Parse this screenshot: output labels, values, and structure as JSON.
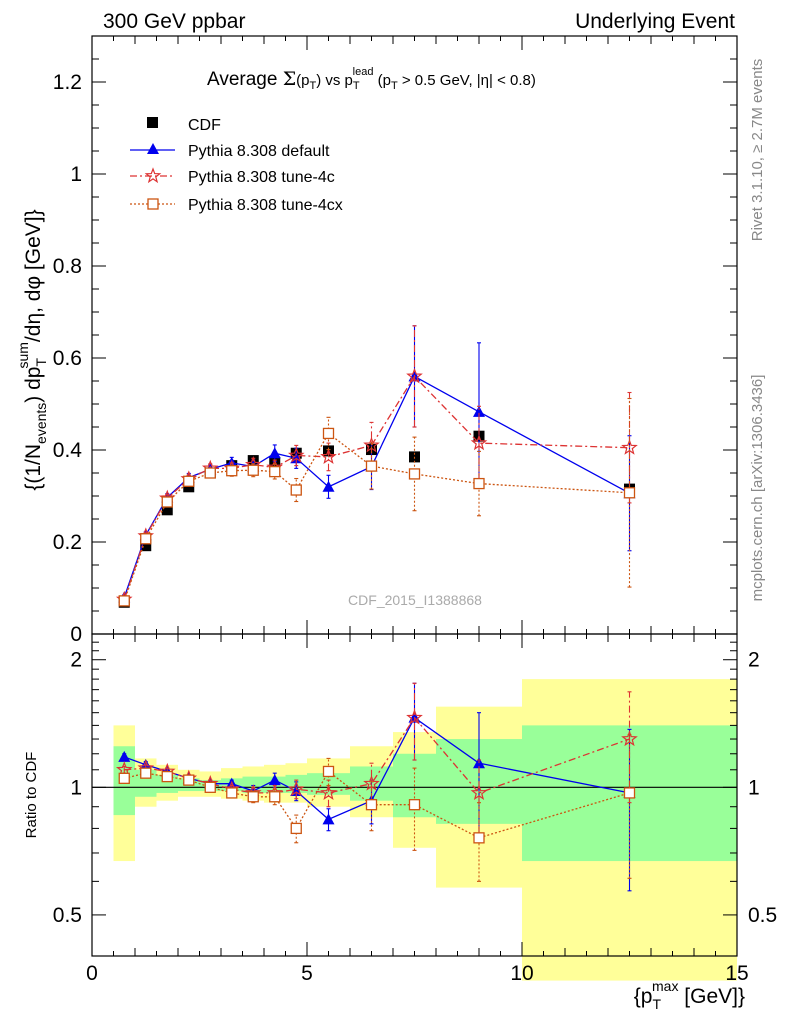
{
  "header": {
    "left": "300 GeV ppbar",
    "right": "Underlying Event"
  },
  "side_labels": {
    "rivet": "Rivet 3.1.10, ≥ 2.7M events",
    "mcplots": "mcplots.cern.ch [arXiv:1306.3436]"
  },
  "colors": {
    "cdf": "#000000",
    "default": "#0000ee",
    "tune4c": "#dd3333",
    "tune4cx": "#cc5511",
    "band_outer": "#ffff99",
    "band_inner": "#99ff99"
  },
  "chart_data": [
    {
      "type": "scatter",
      "panel": "main",
      "title_parts": {
        "prefix": "Average ",
        "sigma": "Σ",
        "pt": "(p",
        "pt_sub": "T",
        "vs": ") vs p",
        "lead_sub": "T",
        "lead_sup": "lead",
        "cuts1": " (p",
        "cuts_sub": "T",
        "cuts2": " > 0.5 GeV, |η| < 0.8)"
      },
      "ylabel_parts": {
        "a": "{(1/N",
        "a_sub": "events",
        "b": ") dp",
        "b_sub": "T",
        "b_sup": "sum",
        "c": "/dη, dφ [GeV]}"
      },
      "watermark": "CDF_2015_I1388868",
      "xlim": [
        0,
        15
      ],
      "ylim": [
        0,
        1.3
      ],
      "yticks": [
        {
          "v": 0,
          "label": "0"
        },
        {
          "v": 0.2,
          "label": "0.2"
        },
        {
          "v": 0.4,
          "label": "0.4"
        },
        {
          "v": 0.6,
          "label": "0.6"
        },
        {
          "v": 0.8,
          "label": "0.8"
        },
        {
          "v": 1.0,
          "label": "1"
        },
        {
          "v": 1.2,
          "label": "1.2"
        }
      ],
      "legend_position": "top-left",
      "series": [
        {
          "name": "CDF",
          "key": "cdf",
          "x": [
            0.75,
            1.25,
            1.75,
            2.25,
            2.75,
            3.25,
            3.75,
            4.25,
            4.75,
            5.5,
            6.5,
            7.5,
            9.0,
            12.5
          ],
          "y": [
            0.069,
            0.192,
            0.27,
            0.32,
            0.35,
            0.366,
            0.377,
            0.373,
            0.393,
            0.398,
            0.401,
            0.385,
            0.43,
            0.315
          ]
        },
        {
          "name": "Pythia 8.308 default",
          "key": "default",
          "x": [
            0.75,
            1.25,
            1.75,
            2.25,
            2.75,
            3.25,
            3.75,
            4.25,
            4.75,
            5.5,
            6.5,
            7.5,
            9.0,
            12.5
          ],
          "y": [
            0.08,
            0.215,
            0.297,
            0.34,
            0.358,
            0.372,
            0.364,
            0.393,
            0.382,
            0.32,
            0.364,
            0.56,
            0.483,
            0.306
          ],
          "err": [
            0.005,
            0.007,
            0.008,
            0.009,
            0.01,
            0.012,
            0.014,
            0.018,
            0.022,
            0.025,
            0.05,
            0.11,
            0.15,
            0.125
          ]
        },
        {
          "name": "Pythia 8.308 tune-4c",
          "key": "tune4c",
          "x": [
            0.75,
            1.25,
            1.75,
            2.25,
            2.75,
            3.25,
            3.75,
            4.25,
            4.75,
            5.5,
            6.5,
            7.5,
            9.0,
            12.5
          ],
          "y": [
            0.075,
            0.213,
            0.295,
            0.337,
            0.36,
            0.36,
            0.368,
            0.362,
            0.388,
            0.385,
            0.41,
            0.56,
            0.415,
            0.405
          ],
          "err": [
            0.004,
            0.007,
            0.008,
            0.009,
            0.01,
            0.012,
            0.014,
            0.016,
            0.022,
            0.03,
            0.05,
            0.11,
            0.08,
            0.12
          ]
        },
        {
          "name": "Pythia 8.308 tune-4cx",
          "key": "tune4cx",
          "x": [
            0.75,
            1.25,
            1.75,
            2.25,
            2.75,
            3.25,
            3.75,
            4.25,
            4.75,
            5.5,
            6.5,
            7.5,
            9.0,
            12.5
          ],
          "y": [
            0.072,
            0.207,
            0.287,
            0.332,
            0.35,
            0.355,
            0.356,
            0.353,
            0.313,
            0.436,
            0.365,
            0.348,
            0.327,
            0.307
          ],
          "err": [
            0.004,
            0.007,
            0.008,
            0.009,
            0.01,
            0.012,
            0.014,
            0.016,
            0.025,
            0.035,
            0.05,
            0.08,
            0.07,
            0.205
          ]
        }
      ]
    },
    {
      "type": "scatter",
      "panel": "ratio",
      "ylabel": "Ratio to CDF",
      "xlabel_parts": {
        "a": "{p",
        "sub": "T",
        "sup": "max",
        "b": " [GeV]}"
      },
      "xlim": [
        0,
        15
      ],
      "ylim": [
        0.4,
        2.3
      ],
      "yscale": "log",
      "yticks": [
        {
          "v": 0.5,
          "label": "0.5"
        },
        {
          "v": 1,
          "label": "1"
        },
        {
          "v": 2,
          "label": "2"
        }
      ],
      "xticks": [
        {
          "v": 0,
          "label": "0"
        },
        {
          "v": 5,
          "label": "5"
        },
        {
          "v": 10,
          "label": "10"
        },
        {
          "v": 15,
          "label": "15"
        }
      ],
      "bands": [
        {
          "x0": 0.5,
          "x1": 1.0,
          "outer": [
            0.67,
            1.4
          ],
          "inner": [
            0.86,
            1.25
          ]
        },
        {
          "x0": 1.0,
          "x1": 1.5,
          "outer": [
            0.9,
            1.17
          ],
          "inner": [
            0.95,
            1.1
          ]
        },
        {
          "x0": 1.5,
          "x1": 2.0,
          "outer": [
            0.93,
            1.13
          ],
          "inner": [
            0.97,
            1.07
          ]
        },
        {
          "x0": 2.0,
          "x1": 2.5,
          "outer": [
            0.95,
            1.1
          ],
          "inner": [
            0.98,
            1.05
          ]
        },
        {
          "x0": 2.5,
          "x1": 3.0,
          "outer": [
            0.95,
            1.09
          ],
          "inner": [
            0.98,
            1.04
          ]
        },
        {
          "x0": 3.0,
          "x1": 3.5,
          "outer": [
            0.94,
            1.11
          ],
          "inner": [
            0.98,
            1.05
          ]
        },
        {
          "x0": 3.5,
          "x1": 4.0,
          "outer": [
            0.93,
            1.12
          ],
          "inner": [
            0.97,
            1.06
          ]
        },
        {
          "x0": 4.0,
          "x1": 4.5,
          "outer": [
            0.92,
            1.13
          ],
          "inner": [
            0.97,
            1.06
          ]
        },
        {
          "x0": 4.5,
          "x1": 5.0,
          "outer": [
            0.92,
            1.14
          ],
          "inner": [
            0.97,
            1.07
          ]
        },
        {
          "x0": 5.0,
          "x1": 6.0,
          "outer": [
            0.9,
            1.17
          ],
          "inner": [
            0.96,
            1.08
          ]
        },
        {
          "x0": 6.0,
          "x1": 7.0,
          "outer": [
            0.85,
            1.25
          ],
          "inner": [
            0.93,
            1.12
          ]
        },
        {
          "x0": 7.0,
          "x1": 8.0,
          "outer": [
            0.72,
            1.35
          ],
          "inner": [
            0.85,
            1.2
          ]
        },
        {
          "x0": 8.0,
          "x1": 10.0,
          "outer": [
            0.58,
            1.55
          ],
          "inner": [
            0.82,
            1.3
          ]
        },
        {
          "x0": 10.0,
          "x1": 15.0,
          "outer": [
            0.35,
            1.8
          ],
          "inner": [
            0.67,
            1.4
          ]
        }
      ],
      "series": [
        {
          "name": "Pythia 8.308 default",
          "key": "default",
          "x": [
            0.75,
            1.25,
            1.75,
            2.25,
            2.75,
            3.25,
            3.75,
            4.25,
            4.75,
            5.5,
            6.5,
            7.5,
            9.0,
            12.5
          ],
          "y": [
            1.18,
            1.13,
            1.09,
            1.05,
            1.02,
            1.02,
            0.98,
            1.04,
            0.98,
            0.84,
            0.93,
            1.46,
            1.14,
            0.97
          ],
          "err": [
            0.02,
            0.02,
            0.02,
            0.02,
            0.02,
            0.02,
            0.03,
            0.04,
            0.05,
            0.05,
            0.11,
            0.3,
            0.36,
            0.4
          ]
        },
        {
          "name": "Pythia 8.308 tune-4c",
          "key": "tune4c",
          "x": [
            0.75,
            1.25,
            1.75,
            2.25,
            2.75,
            3.25,
            3.75,
            4.25,
            4.75,
            5.5,
            6.5,
            7.5,
            9.0,
            12.5
          ],
          "y": [
            1.1,
            1.11,
            1.09,
            1.05,
            1.02,
            0.99,
            0.97,
            0.97,
            0.99,
            0.97,
            1.02,
            1.46,
            0.97,
            1.3
          ],
          "err": [
            0.02,
            0.02,
            0.02,
            0.02,
            0.02,
            0.02,
            0.03,
            0.04,
            0.05,
            0.07,
            0.12,
            0.3,
            0.19,
            0.38
          ]
        },
        {
          "name": "Pythia 8.308 tune-4cx",
          "key": "tune4cx",
          "x": [
            0.75,
            1.25,
            1.75,
            2.25,
            2.75,
            3.25,
            3.75,
            4.25,
            4.75,
            5.5,
            6.5,
            7.5,
            9.0,
            12.5
          ],
          "y": [
            1.05,
            1.08,
            1.06,
            1.04,
            1.0,
            0.97,
            0.95,
            0.95,
            0.8,
            1.09,
            0.91,
            0.91,
            0.76,
            0.97
          ],
          "err": [
            0.02,
            0.02,
            0.02,
            0.02,
            0.02,
            0.02,
            0.03,
            0.04,
            0.06,
            0.08,
            0.12,
            0.2,
            0.16,
            0.36
          ]
        }
      ]
    }
  ]
}
